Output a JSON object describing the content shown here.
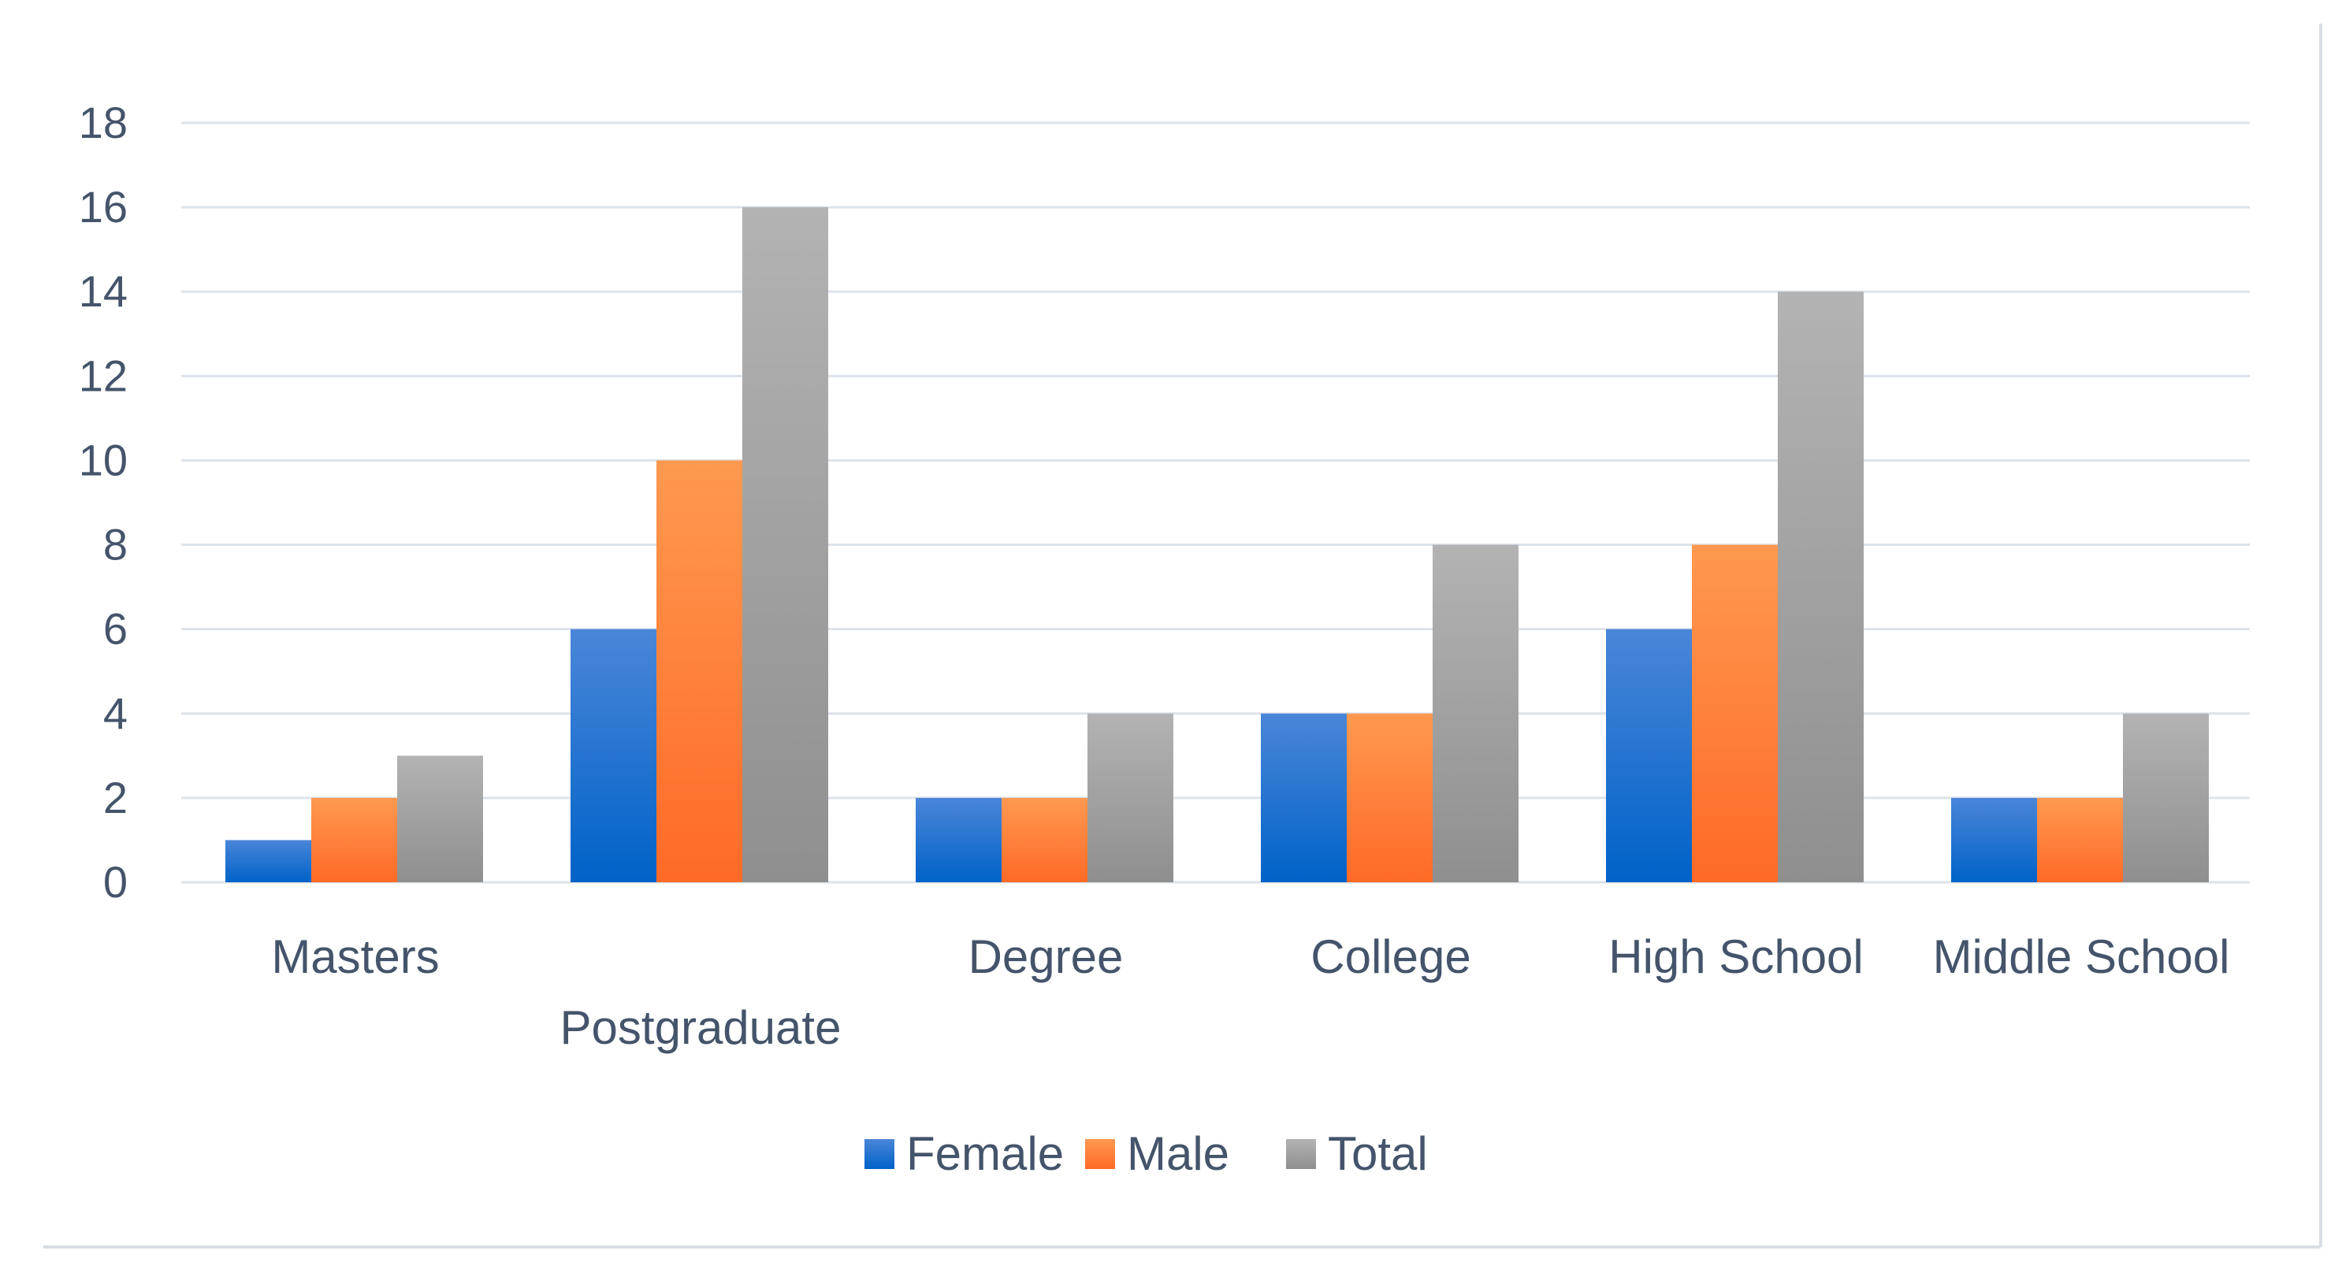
{
  "colors": {
    "background": "#ffffff",
    "gridline": "#dde3ea",
    "axis_text": "#44546a",
    "frame": "#d9dee4",
    "series": {
      "Female": {
        "top": "#4a86d8",
        "bottom": "#0062c8"
      },
      "Male": {
        "top": "#ff9950",
        "bottom": "#ff6a26"
      },
      "Total": {
        "top": "#b3b3b3",
        "bottom": "#8f8f8f"
      }
    }
  },
  "chart_data": {
    "type": "bar",
    "title": "",
    "xlabel": "",
    "ylabel": "",
    "ylim": [
      0,
      18
    ],
    "yticks": [
      0,
      2,
      4,
      6,
      8,
      10,
      12,
      14,
      16,
      18
    ],
    "grid": true,
    "legend_position": "bottom-center",
    "categories": [
      "Masters",
      "Postgraduate",
      "Degree",
      "College",
      "High School",
      "Middle School"
    ],
    "series": [
      {
        "name": "Female",
        "values": [
          1,
          6,
          2,
          4,
          6,
          2
        ]
      },
      {
        "name": "Male",
        "values": [
          2,
          10,
          2,
          4,
          8,
          2
        ]
      },
      {
        "name": "Total",
        "values": [
          3,
          16,
          4,
          8,
          14,
          4
        ]
      }
    ]
  }
}
